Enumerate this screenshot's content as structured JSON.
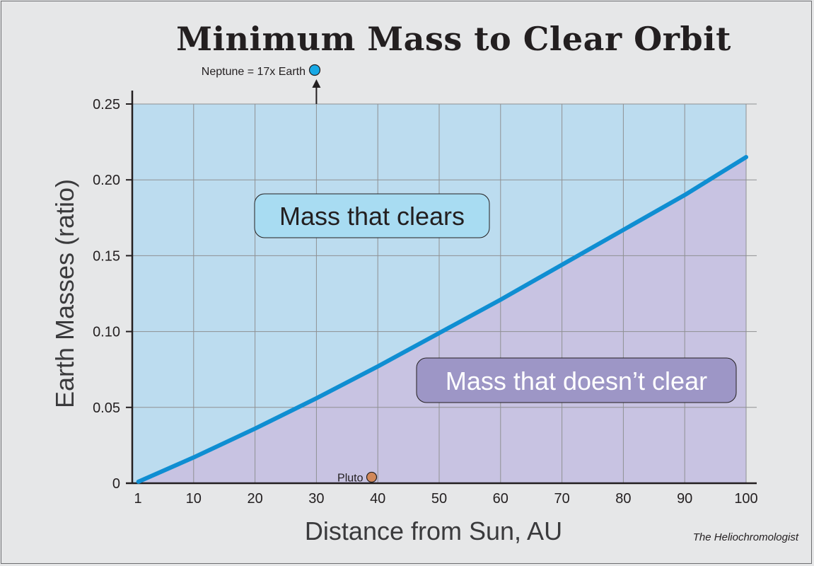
{
  "chart_data": {
    "type": "area",
    "title": "Minimum Mass to Clear Orbit",
    "xlabel": "Distance from Sun, AU",
    "ylabel": "Earth Masses (ratio)",
    "x_ticks": [
      "1",
      "10",
      "20",
      "30",
      "40",
      "50",
      "60",
      "70",
      "80",
      "90",
      "100"
    ],
    "x_tick_values": [
      1,
      10,
      20,
      30,
      40,
      50,
      60,
      70,
      80,
      90,
      100
    ],
    "y_ticks": [
      "0",
      "0.05",
      "0.10",
      "0.15",
      "0.20",
      "0.25"
    ],
    "y_tick_values": [
      0,
      0.05,
      0.1,
      0.15,
      0.2,
      0.25
    ],
    "xlim": [
      0,
      100
    ],
    "ylim": [
      0,
      0.25
    ],
    "grid": true,
    "series": [
      {
        "x": [
          1,
          10,
          20,
          30,
          40,
          50,
          60,
          70,
          80,
          90,
          100
        ],
        "y": [
          0.001,
          0.017,
          0.036,
          0.056,
          0.077,
          0.099,
          0.121,
          0.144,
          0.167,
          0.19,
          0.215
        ]
      }
    ],
    "regions": {
      "above": "Mass that clears",
      "below": "Mass that doesn’t clear"
    },
    "annotations": [
      {
        "label": "Neptune = 17x Earth",
        "x": 30,
        "note": "off-scale, arrow up"
      },
      {
        "label": "Pluto",
        "x": 39,
        "y": 0.004
      }
    ],
    "colors": {
      "above_fill": "#bcdcef",
      "below_fill": "#c8c3e2",
      "line": "#0f8ed2",
      "grid": "#8f9092",
      "neptune": "#17a9e6",
      "pluto": "#d1885a",
      "label_above_bg": "#a8dcf2",
      "label_below_bg": "#9d96c6"
    }
  },
  "credit": "The Heliochromologist"
}
